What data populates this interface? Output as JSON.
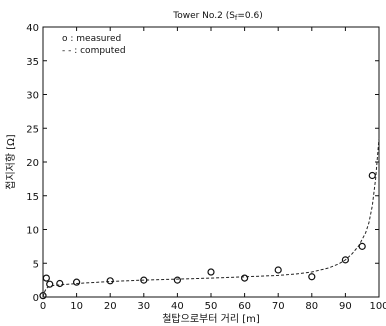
{
  "chart_data": {
    "type": "scatter",
    "title": "Tower No.2 (S",
    "title_sub": "f",
    "title_rest": "=0.6)",
    "xlabel": "철탑으로부터 거리 [m]",
    "ylabel": "접지저항 [Ω]",
    "xlim": [
      0,
      100
    ],
    "ylim": [
      0,
      40
    ],
    "x_ticks": [
      0,
      10,
      20,
      30,
      40,
      50,
      60,
      70,
      80,
      90,
      100
    ],
    "y_ticks": [
      0,
      5,
      10,
      15,
      20,
      25,
      30,
      35,
      40
    ],
    "grid": false,
    "legend_position": "top-left",
    "series": [
      {
        "name": "o : measured",
        "marker": "circle",
        "x": [
          0,
          1,
          2,
          5,
          10,
          20,
          30,
          40,
          50,
          60,
          70,
          80,
          90,
          95,
          98
        ],
        "y": [
          0.2,
          2.8,
          1.9,
          2.0,
          2.2,
          2.4,
          2.5,
          2.5,
          3.7,
          2.8,
          4.0,
          3.0,
          5.5,
          7.5,
          18.0
        ]
      },
      {
        "name": "- - : computed",
        "line": "dashed",
        "x": [
          0,
          0.5,
          1,
          2,
          3,
          5,
          10,
          20,
          30,
          40,
          50,
          60,
          70,
          75,
          80,
          85,
          88,
          90,
          92,
          94,
          96,
          97,
          98,
          99,
          100
        ],
        "y": [
          0,
          0.8,
          1.3,
          1.6,
          1.7,
          1.8,
          2.0,
          2.3,
          2.5,
          2.65,
          2.8,
          3.0,
          3.2,
          3.4,
          3.7,
          4.3,
          4.9,
          5.5,
          6.4,
          7.6,
          9.5,
          11.0,
          13.5,
          17.5,
          23.5
        ]
      }
    ]
  }
}
